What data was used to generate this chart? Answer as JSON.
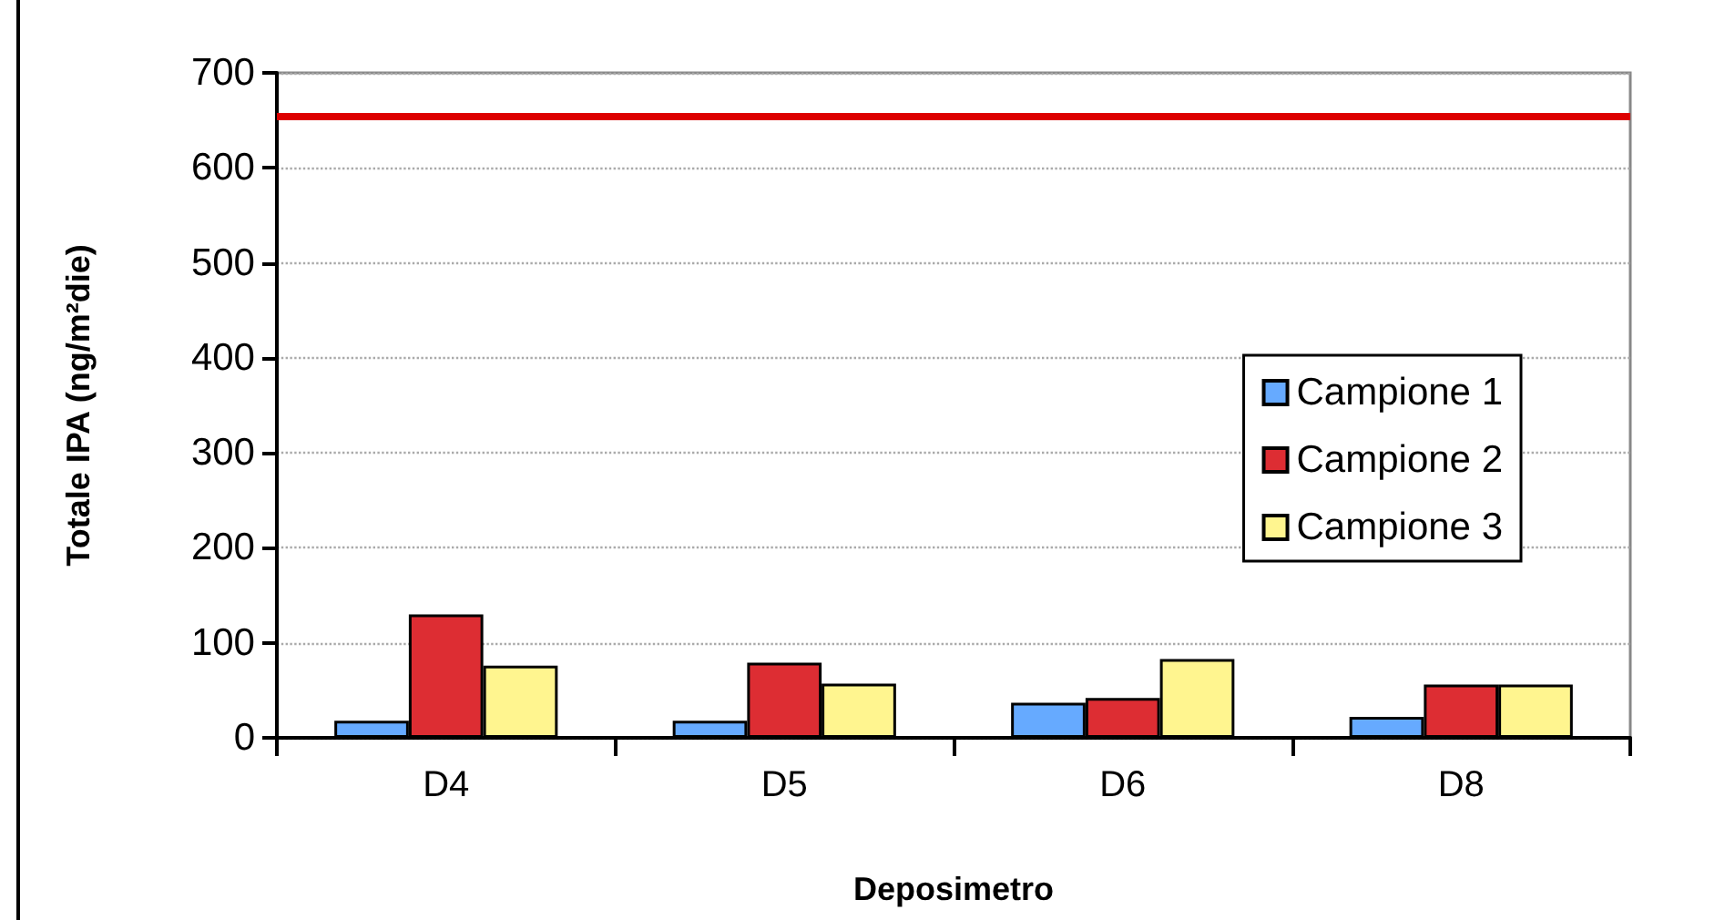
{
  "chart_data": {
    "type": "bar",
    "categories": [
      "D4",
      "D5",
      "D6",
      "D8"
    ],
    "xlabel": "Deposimetro",
    "ylabel": "Totale IPA (ng/m²die)",
    "series": [
      {
        "name": "Campione 1",
        "color": "#66aaff",
        "values": [
          18,
          18,
          37,
          22
        ]
      },
      {
        "name": "Campione 2",
        "color": "#dd2d33",
        "values": [
          130,
          79,
          42,
          56
        ]
      },
      {
        "name": "Campione 3",
        "color": "#fff58f",
        "values": [
          76,
          57,
          83,
          56
        ]
      }
    ],
    "ylim": [
      0,
      700
    ],
    "yticks": [
      0,
      100,
      200,
      300,
      400,
      500,
      600,
      700
    ],
    "grid": "y",
    "legend": "right",
    "ref_lines": [
      {
        "axis": "y",
        "value": 655,
        "color": "#dd0000"
      }
    ]
  }
}
